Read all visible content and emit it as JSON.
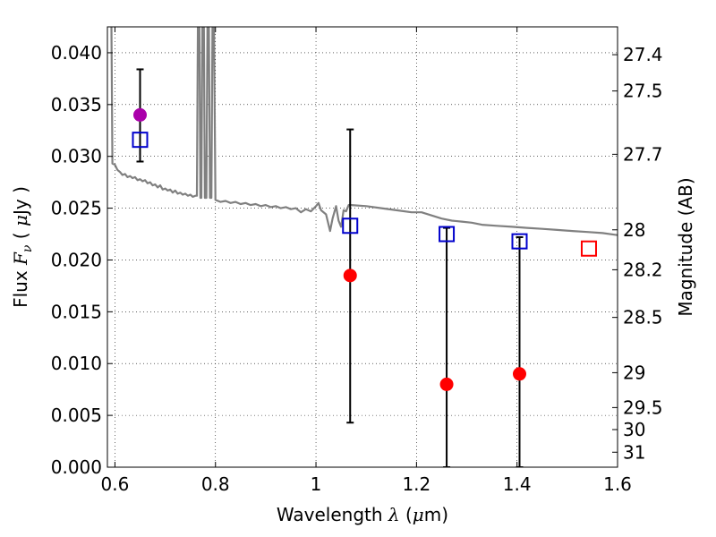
{
  "chart_data": {
    "type": "scatter",
    "xlabel": {
      "text": "Wavelength",
      "symbol": "λ",
      "unit_open": " (",
      "unit_mu": "μ",
      "unit_rest": "m)"
    },
    "ylabel": {
      "text": "Flux",
      "symbol": "F",
      "symbol_sub": "ν",
      "unit_open": "( ",
      "unit_mu": "μ",
      "unit_rest": "Jy )"
    },
    "y2label": "Magnitude (AB)",
    "xlim": [
      0.585,
      1.6
    ],
    "ylim": [
      0.0,
      0.0425
    ],
    "grid": true,
    "x_ticks": [
      {
        "value": 0.6,
        "label": "0.6"
      },
      {
        "value": 0.8,
        "label": "0.8"
      },
      {
        "value": 1.0,
        "label": "1"
      },
      {
        "value": 1.2,
        "label": "1.2"
      },
      {
        "value": 1.4,
        "label": "1.4"
      },
      {
        "value": 1.6,
        "label": "1.6"
      }
    ],
    "y_ticks": [
      {
        "value": 0.0,
        "label": "0.000"
      },
      {
        "value": 0.005,
        "label": "0.005"
      },
      {
        "value": 0.01,
        "label": "0.010"
      },
      {
        "value": 0.015,
        "label": "0.015"
      },
      {
        "value": 0.02,
        "label": "0.020"
      },
      {
        "value": 0.025,
        "label": "0.025"
      },
      {
        "value": 0.03,
        "label": "0.030"
      },
      {
        "value": 0.035,
        "label": "0.035"
      },
      {
        "value": 0.04,
        "label": "0.040"
      }
    ],
    "y2_ticks": [
      {
        "value": 27.4,
        "label": "27.4"
      },
      {
        "value": 27.5,
        "label": "27.5"
      },
      {
        "value": 27.7,
        "label": "27.7"
      },
      {
        "value": 28.0,
        "label": "28"
      },
      {
        "value": 28.2,
        "label": "28.2"
      },
      {
        "value": 28.5,
        "label": "28.5"
      },
      {
        "value": 29.0,
        "label": "29"
      },
      {
        "value": 29.5,
        "label": "29.5"
      },
      {
        "value": 30.0,
        "label": "30"
      },
      {
        "value": 31.0,
        "label": "31"
      }
    ],
    "model_spectrum": {
      "color": "#808080",
      "points": [
        [
          0.593,
          0.0425
        ],
        [
          0.595,
          0.0293
        ],
        [
          0.6,
          0.0292
        ],
        [
          0.605,
          0.0287
        ],
        [
          0.61,
          0.0285
        ],
        [
          0.615,
          0.0282
        ],
        [
          0.62,
          0.0283
        ],
        [
          0.625,
          0.028
        ],
        [
          0.63,
          0.0281
        ],
        [
          0.635,
          0.0279
        ],
        [
          0.64,
          0.028
        ],
        [
          0.645,
          0.0277
        ],
        [
          0.65,
          0.0278
        ],
        [
          0.655,
          0.0276
        ],
        [
          0.66,
          0.0277
        ],
        [
          0.665,
          0.0274
        ],
        [
          0.67,
          0.0275
        ],
        [
          0.675,
          0.0272
        ],
        [
          0.68,
          0.0273
        ],
        [
          0.685,
          0.027
        ],
        [
          0.69,
          0.0272
        ],
        [
          0.695,
          0.0268
        ],
        [
          0.7,
          0.0269
        ],
        [
          0.705,
          0.0267
        ],
        [
          0.71,
          0.0268
        ],
        [
          0.715,
          0.0265
        ],
        [
          0.72,
          0.0267
        ],
        [
          0.725,
          0.0264
        ],
        [
          0.73,
          0.0265
        ],
        [
          0.735,
          0.0263
        ],
        [
          0.74,
          0.0264
        ],
        [
          0.745,
          0.0262
        ],
        [
          0.75,
          0.0263
        ],
        [
          0.755,
          0.0261
        ],
        [
          0.76,
          0.0262
        ],
        [
          0.763,
          0.0262
        ],
        [
          0.765,
          0.0425
        ],
        [
          0.768,
          0.0425
        ],
        [
          0.77,
          0.026
        ],
        [
          0.772,
          0.026
        ],
        [
          0.774,
          0.0425
        ],
        [
          0.777,
          0.0425
        ],
        [
          0.779,
          0.026
        ],
        [
          0.782,
          0.026
        ],
        [
          0.784,
          0.0425
        ],
        [
          0.787,
          0.0425
        ],
        [
          0.789,
          0.026
        ],
        [
          0.792,
          0.026
        ],
        [
          0.794,
          0.0425
        ],
        [
          0.797,
          0.0425
        ],
        [
          0.8,
          0.0258
        ],
        [
          0.81,
          0.0256
        ],
        [
          0.82,
          0.0257
        ],
        [
          0.83,
          0.0255
        ],
        [
          0.84,
          0.0256
        ],
        [
          0.85,
          0.0254
        ],
        [
          0.86,
          0.0255
        ],
        [
          0.87,
          0.0253
        ],
        [
          0.88,
          0.0254
        ],
        [
          0.89,
          0.0252
        ],
        [
          0.9,
          0.0253
        ],
        [
          0.91,
          0.0251
        ],
        [
          0.92,
          0.0252
        ],
        [
          0.93,
          0.025
        ],
        [
          0.94,
          0.0251
        ],
        [
          0.95,
          0.0249
        ],
        [
          0.96,
          0.025
        ],
        [
          0.97,
          0.0246
        ],
        [
          0.98,
          0.0249
        ],
        [
          0.99,
          0.0247
        ],
        [
          1.0,
          0.0252
        ],
        [
          1.005,
          0.0255
        ],
        [
          1.01,
          0.0248
        ],
        [
          1.02,
          0.0244
        ],
        [
          1.028,
          0.0228
        ],
        [
          1.033,
          0.024
        ],
        [
          1.04,
          0.0252
        ],
        [
          1.045,
          0.0238
        ],
        [
          1.05,
          0.0232
        ],
        [
          1.055,
          0.0248
        ],
        [
          1.06,
          0.0247
        ],
        [
          1.065,
          0.0253
        ],
        [
          1.07,
          0.0253
        ],
        [
          1.1,
          0.0252
        ],
        [
          1.13,
          0.025
        ],
        [
          1.16,
          0.0248
        ],
        [
          1.19,
          0.0246
        ],
        [
          1.21,
          0.0246
        ],
        [
          1.23,
          0.0243
        ],
        [
          1.25,
          0.024
        ],
        [
          1.27,
          0.0238
        ],
        [
          1.29,
          0.0237
        ],
        [
          1.31,
          0.0236
        ],
        [
          1.33,
          0.0234
        ],
        [
          1.36,
          0.0233
        ],
        [
          1.39,
          0.0232
        ],
        [
          1.42,
          0.0231
        ],
        [
          1.45,
          0.023
        ],
        [
          1.48,
          0.0229
        ],
        [
          1.51,
          0.0228
        ],
        [
          1.54,
          0.0227
        ],
        [
          1.57,
          0.0226
        ],
        [
          1.6,
          0.0224
        ]
      ]
    },
    "series": [
      {
        "marker": "circle",
        "color": "#aa00aa",
        "points": [
          {
            "x": 0.65,
            "y": 0.034,
            "yerr_low": 0.0295,
            "yerr_high": 0.0384
          }
        ]
      },
      {
        "marker": "circle",
        "color": "#ff0000",
        "points": [
          {
            "x": 1.068,
            "y": 0.0185,
            "yerr_low": 0.0043,
            "yerr_high": 0.0326
          },
          {
            "x": 1.26,
            "y": 0.008,
            "yerr_low": 0.0,
            "yerr_high": 0.0231
          },
          {
            "x": 1.405,
            "y": 0.009,
            "yerr_low": 0.0,
            "yerr_high": 0.0222
          }
        ]
      },
      {
        "marker": "square-open",
        "color": "#0000cc",
        "points": [
          {
            "x": 0.65,
            "y": 0.0316
          },
          {
            "x": 1.068,
            "y": 0.0233
          },
          {
            "x": 1.26,
            "y": 0.0225
          },
          {
            "x": 1.405,
            "y": 0.0218
          }
        ]
      },
      {
        "marker": "square-open",
        "color": "#ff0000",
        "points": [
          {
            "x": 1.543,
            "y": 0.0211
          }
        ]
      }
    ]
  }
}
